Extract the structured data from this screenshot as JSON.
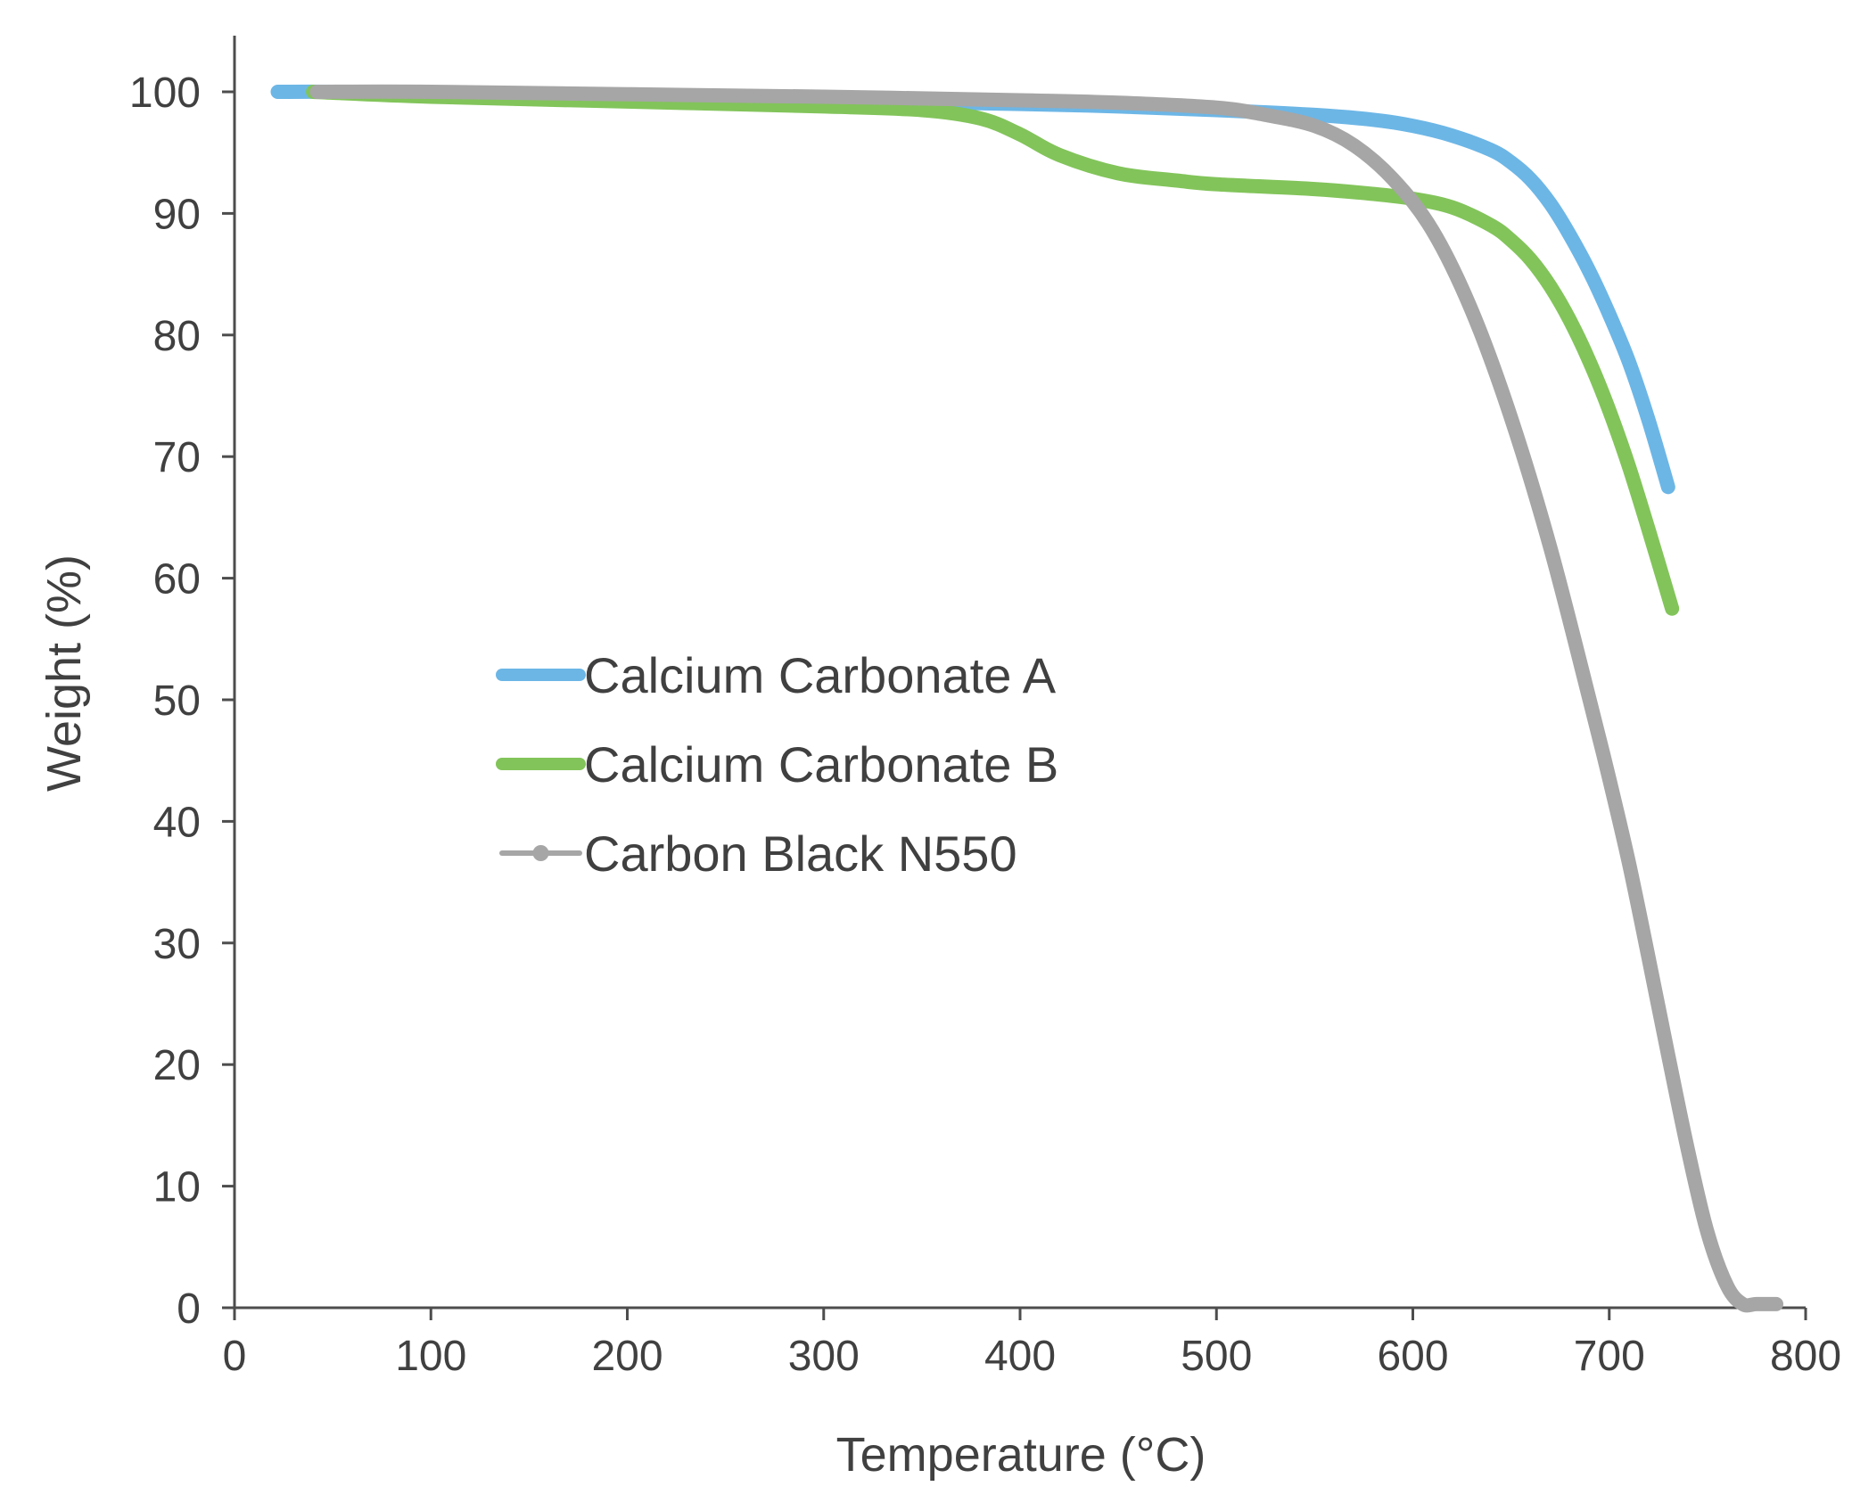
{
  "chart_data": {
    "type": "line",
    "title": "",
    "xlabel": "Temperature (°C)",
    "ylabel": "Weight (%)",
    "xlim": [
      0,
      800
    ],
    "ylim": [
      0,
      100
    ],
    "xticks": [
      "0",
      "100",
      "200",
      "300",
      "400",
      "500",
      "600",
      "700",
      "800"
    ],
    "yticks": [
      "0",
      "10",
      "20",
      "30",
      "40",
      "50",
      "60",
      "70",
      "80",
      "90",
      "100"
    ],
    "grid": false,
    "legend_position": "center-left",
    "series": [
      {
        "name": "Calcium Carbonate A",
        "color": "#6cb6e6",
        "marker": "none",
        "x": [
          22,
          50,
          100,
          200,
          300,
          400,
          450,
          500,
          550,
          580,
          600,
          620,
          640,
          650,
          660,
          670,
          680,
          690,
          700,
          710,
          720,
          730
        ],
        "y": [
          100,
          100,
          99.9,
          99.6,
          99.3,
          99.0,
          98.8,
          98.5,
          98.1,
          97.7,
          97.2,
          96.4,
          95.2,
          94.2,
          92.8,
          90.8,
          88.2,
          85.2,
          81.7,
          77.8,
          73.0,
          67.5
        ]
      },
      {
        "name": "Calcium Carbonate B",
        "color": "#82c45a",
        "marker": "none",
        "x": [
          40,
          100,
          200,
          300,
          350,
          380,
          400,
          420,
          450,
          480,
          500,
          550,
          580,
          600,
          620,
          640,
          650,
          660,
          670,
          680,
          690,
          700,
          710,
          720,
          732
        ],
        "y": [
          100,
          99.6,
          99.2,
          98.8,
          98.5,
          97.8,
          96.5,
          94.8,
          93.3,
          92.7,
          92.4,
          92.0,
          91.6,
          91.2,
          90.5,
          89.0,
          87.8,
          86.2,
          84.0,
          81.2,
          77.8,
          73.8,
          69.2,
          64.0,
          57.5
        ]
      },
      {
        "name": "Carbon Black N550",
        "color": "#a6a6a6",
        "marker": "circle",
        "x": [
          42,
          100,
          200,
          300,
          400,
          450,
          500,
          525,
          550,
          570,
          590,
          610,
          630,
          650,
          670,
          690,
          700,
          710,
          720,
          730,
          740,
          750,
          760,
          768,
          775,
          785
        ],
        "y": [
          100,
          100,
          99.8,
          99.6,
          99.3,
          99.1,
          98.7,
          98.1,
          97.2,
          95.6,
          92.8,
          88.6,
          82.0,
          73.2,
          62.5,
          50.0,
          43.5,
          36.6,
          28.8,
          20.8,
          13.0,
          6.2,
          1.8,
          0.3,
          0.3,
          0.3
        ]
      }
    ]
  }
}
